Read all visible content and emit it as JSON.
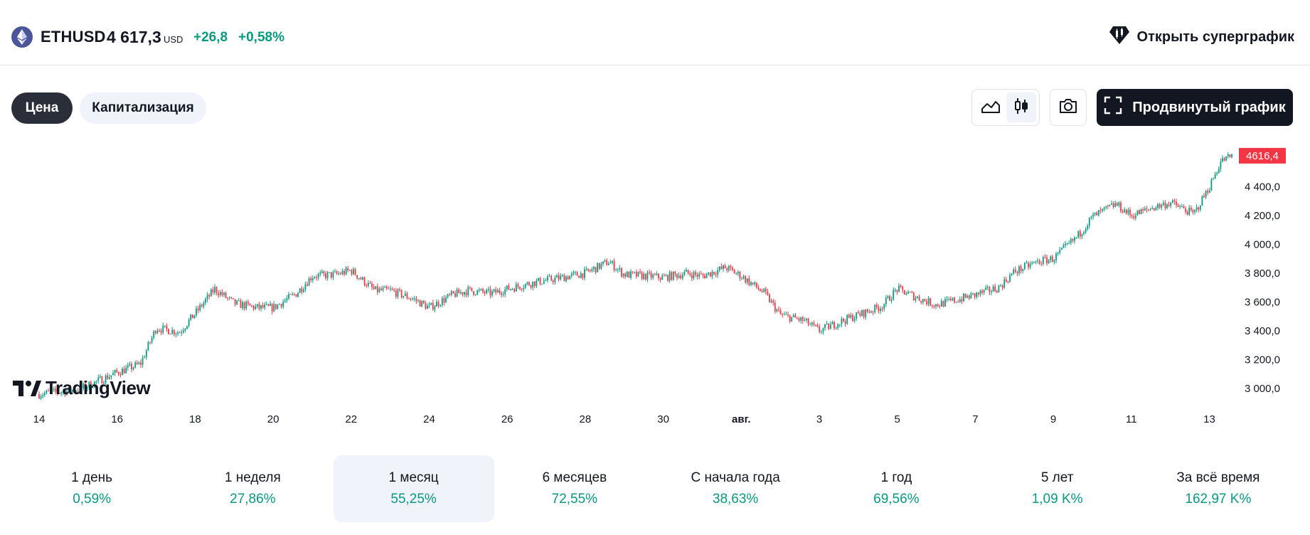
{
  "header": {
    "symbol": "ETHUSD",
    "price": "4 617,3",
    "currency": "USD",
    "change": "+26,8",
    "change_pct": "+0,58%",
    "supergraph_label": "Открыть суперграфик"
  },
  "toolbar": {
    "tabs": [
      {
        "label": "Цена",
        "active": true
      },
      {
        "label": "Капитализация",
        "active": false
      }
    ],
    "chart_styles": [
      {
        "icon": "area-chart-icon",
        "active": false
      },
      {
        "icon": "candles-icon",
        "active": true
      }
    ],
    "snapshot_icon": "camera-icon",
    "advanced_label": "Продвинутый график",
    "advanced_icon": "fullscreen-icon"
  },
  "colors": {
    "up": "#089981",
    "down": "#f23645",
    "dark": "#131722",
    "accent_bg": "#f0f3fa",
    "eth_logo": "#4b5598"
  },
  "chart_data": {
    "type": "candlestick",
    "symbol": "ETHUSD",
    "x_tick_labels": [
      "14",
      "16",
      "18",
      "20",
      "22",
      "24",
      "26",
      "28",
      "30",
      "авг.",
      "3",
      "5",
      "7",
      "9",
      "11",
      "13"
    ],
    "y_tick_labels": [
      "3 000,0",
      "3 200,0",
      "3 400,0",
      "3 600,0",
      "3 800,0",
      "4 000,0",
      "4 200,0",
      "4 400,0"
    ],
    "ylim": [
      2930,
      4660
    ],
    "last_price_label": "4616,4",
    "close_path": [
      {
        "x": "14",
        "y": 2960
      },
      {
        "x": "15",
        "y": 2990
      },
      {
        "x": "16",
        "y": 3110
      },
      {
        "x": "16.6",
        "y": 3170
      },
      {
        "x": "17",
        "y": 3420
      },
      {
        "x": "17.6",
        "y": 3390
      },
      {
        "x": "18",
        "y": 3520
      },
      {
        "x": "18.5",
        "y": 3690
      },
      {
        "x": "19",
        "y": 3590
      },
      {
        "x": "19.6",
        "y": 3560
      },
      {
        "x": "20",
        "y": 3560
      },
      {
        "x": "20.6",
        "y": 3660
      },
      {
        "x": "21",
        "y": 3780
      },
      {
        "x": "21.6",
        "y": 3790
      },
      {
        "x": "22",
        "y": 3820
      },
      {
        "x": "22.6",
        "y": 3680
      },
      {
        "x": "23",
        "y": 3680
      },
      {
        "x": "23.6",
        "y": 3620
      },
      {
        "x": "24",
        "y": 3560
      },
      {
        "x": "24.6",
        "y": 3650
      },
      {
        "x": "25",
        "y": 3680
      },
      {
        "x": "25.6",
        "y": 3660
      },
      {
        "x": "26",
        "y": 3690
      },
      {
        "x": "26.6",
        "y": 3730
      },
      {
        "x": "27",
        "y": 3750
      },
      {
        "x": "27.6",
        "y": 3780
      },
      {
        "x": "28",
        "y": 3800
      },
      {
        "x": "28.6",
        "y": 3880
      },
      {
        "x": "29",
        "y": 3790
      },
      {
        "x": "29.6",
        "y": 3780
      },
      {
        "x": "30",
        "y": 3770
      },
      {
        "x": "30.6",
        "y": 3800
      },
      {
        "x": "31",
        "y": 3780
      },
      {
        "x": "31.6",
        "y": 3840
      },
      {
        "x": "авг.",
        "y": 3780
      },
      {
        "x": "1.6",
        "y": 3660
      },
      {
        "x": "2",
        "y": 3510
      },
      {
        "x": "2.6",
        "y": 3470
      },
      {
        "x": "3",
        "y": 3400
      },
      {
        "x": "3.6",
        "y": 3470
      },
      {
        "x": "4",
        "y": 3510
      },
      {
        "x": "4.6",
        "y": 3570
      },
      {
        "x": "5",
        "y": 3690
      },
      {
        "x": "5.6",
        "y": 3620
      },
      {
        "x": "6",
        "y": 3580
      },
      {
        "x": "6.6",
        "y": 3620
      },
      {
        "x": "7",
        "y": 3650
      },
      {
        "x": "7.6",
        "y": 3700
      },
      {
        "x": "8",
        "y": 3810
      },
      {
        "x": "8.6",
        "y": 3880
      },
      {
        "x": "9",
        "y": 3900
      },
      {
        "x": "9.6",
        "y": 4050
      },
      {
        "x": "10",
        "y": 4190
      },
      {
        "x": "10.6",
        "y": 4280
      },
      {
        "x": "11",
        "y": 4200
      },
      {
        "x": "11.6",
        "y": 4260
      },
      {
        "x": "12",
        "y": 4290
      },
      {
        "x": "12.6",
        "y": 4210
      },
      {
        "x": "13",
        "y": 4400
      },
      {
        "x": "13.3",
        "y": 4580
      },
      {
        "x": "13.6",
        "y": 4616
      }
    ]
  },
  "periods": [
    {
      "label": "1 день",
      "value": "0,59%",
      "active": false
    },
    {
      "label": "1 неделя",
      "value": "27,86%",
      "active": false
    },
    {
      "label": "1 месяц",
      "value": "55,25%",
      "active": true
    },
    {
      "label": "6 месяцев",
      "value": "72,55%",
      "active": false
    },
    {
      "label": "С начала года",
      "value": "38,63%",
      "active": false
    },
    {
      "label": "1 год",
      "value": "69,56%",
      "active": false
    },
    {
      "label": "5 лет",
      "value": "1,09 K%",
      "active": false
    },
    {
      "label": "За всё время",
      "value": "162,97 K%",
      "active": false
    }
  ],
  "branding": {
    "logo_text": "TradingView"
  }
}
